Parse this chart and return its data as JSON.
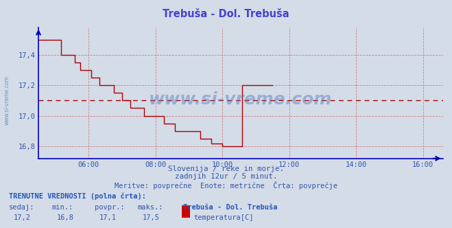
{
  "title": "Trebuša - Dol. Trebuša",
  "title_color": "#4444cc",
  "bg_color": "#d4dce8",
  "plot_bg_color": "#d4dce8",
  "grid_color": "#cc6666",
  "line_color": "#aa0000",
  "avg_line_color": "#aa0000",
  "axis_color": "#0000bb",
  "tick_color": "#3355aa",
  "text_color": "#3355aa",
  "watermark_color": "#5577bb",
  "xlim": [
    4.5,
    16.6
  ],
  "ylim": [
    16.72,
    17.58
  ],
  "yticks": [
    16.8,
    17.0,
    17.2,
    17.4
  ],
  "xticks": [
    6,
    8,
    10,
    12,
    14,
    16
  ],
  "xtick_labels": [
    "06:00",
    "08:00",
    "10:00",
    "12:00",
    "14:00",
    "16:00"
  ],
  "avg_value": 17.1,
  "subtitle1": "Slovenija / reke in morje.",
  "subtitle2": "zadnjih 12ur / 5 minut.",
  "subtitle3": "Meritve: povprečne  Enote: metrične  Črta: povprečje",
  "footer_bold": "TRENUTNE VREDNOSTI (polna črta):",
  "footer_labels": [
    "sedaj:",
    "min.:",
    "povpr.:",
    "maks.:"
  ],
  "footer_values": [
    "17,2",
    "16,8",
    "17,1",
    "17,5"
  ],
  "footer_station": "Trebuša - Dol. Trebuša",
  "footer_series": "temperatura[C]",
  "legend_color": "#cc0000",
  "watermark": "www.si-vreme.com",
  "time_data": [
    4.5,
    4.583,
    4.667,
    4.75,
    4.833,
    4.917,
    5.0,
    5.083,
    5.167,
    5.25,
    5.333,
    5.417,
    5.5,
    5.583,
    5.667,
    5.75,
    5.833,
    5.917,
    6.0,
    6.083,
    6.167,
    6.25,
    6.333,
    6.417,
    6.5,
    6.583,
    6.667,
    6.75,
    6.833,
    6.917,
    7.0,
    7.083,
    7.167,
    7.25,
    7.333,
    7.417,
    7.5,
    7.583,
    7.667,
    7.75,
    7.833,
    7.917,
    8.0,
    8.083,
    8.167,
    8.25,
    8.333,
    8.417,
    8.5,
    8.583,
    8.667,
    8.75,
    8.833,
    8.917,
    9.0,
    9.083,
    9.167,
    9.25,
    9.333,
    9.417,
    9.5,
    9.583,
    9.667,
    9.75,
    9.833,
    9.917,
    10.0,
    10.083,
    10.167,
    10.25,
    10.333,
    10.417,
    10.5,
    10.583,
    10.667,
    10.75,
    10.833,
    10.917,
    11.0,
    11.083,
    11.167,
    11.25,
    11.333,
    11.417,
    11.5
  ],
  "temp_data": [
    17.5,
    17.5,
    17.5,
    17.5,
    17.5,
    17.5,
    17.5,
    17.5,
    17.4,
    17.4,
    17.4,
    17.4,
    17.4,
    17.35,
    17.35,
    17.3,
    17.3,
    17.3,
    17.3,
    17.25,
    17.25,
    17.25,
    17.2,
    17.2,
    17.2,
    17.2,
    17.2,
    17.15,
    17.15,
    17.15,
    17.1,
    17.1,
    17.1,
    17.05,
    17.05,
    17.05,
    17.05,
    17.05,
    17.0,
    17.0,
    17.0,
    17.0,
    17.0,
    17.0,
    17.0,
    16.95,
    16.95,
    16.95,
    16.95,
    16.9,
    16.9,
    16.9,
    16.9,
    16.9,
    16.9,
    16.9,
    16.9,
    16.9,
    16.85,
    16.85,
    16.85,
    16.85,
    16.82,
    16.82,
    16.82,
    16.82,
    16.8,
    16.8,
    16.8,
    16.8,
    16.8,
    16.8,
    16.8,
    17.2,
    17.2,
    17.2,
    17.2,
    17.2,
    17.2,
    17.2,
    17.2,
    17.2,
    17.2,
    17.2,
    17.2
  ]
}
